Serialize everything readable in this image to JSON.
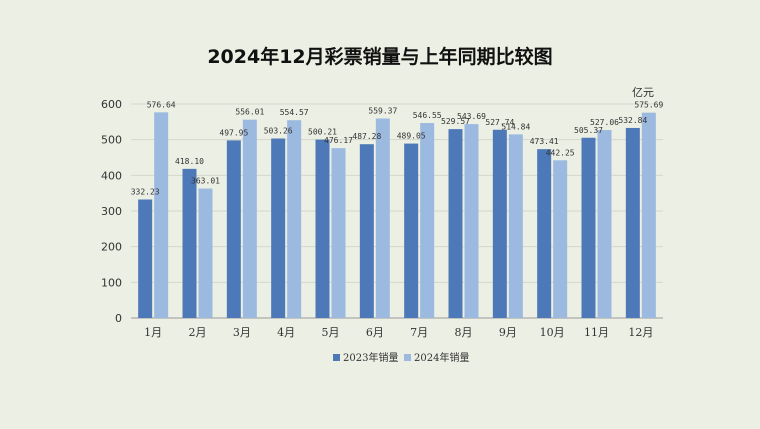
{
  "title": "2024年12月彩票销量与上年同期比较图",
  "colors": {
    "s2023": "#4e79b8",
    "s2024": "#9cb9e0",
    "grid": "#d3d7cc",
    "axis": "#9a9a9a"
  },
  "chart_data": {
    "type": "bar",
    "title": "2024年12月彩票销量与上年同期比较图",
    "unit": "亿元",
    "categories": [
      "1月",
      "2月",
      "3月",
      "4月",
      "5月",
      "6月",
      "7月",
      "8月",
      "9月",
      "10月",
      "11月",
      "12月"
    ],
    "ylim": [
      0,
      600
    ],
    "yticks": [
      0,
      100,
      200,
      300,
      400,
      500,
      600
    ],
    "grid": true,
    "legend": "bottom",
    "series": [
      {
        "name": "2023年销量",
        "values": [
          332.23,
          418.1,
          497.95,
          503.26,
          500.21,
          487.28,
          489.05,
          529.57,
          527.74,
          473.41,
          505.37,
          532.84
        ],
        "labels": [
          "332.23",
          "418.10",
          "497.95",
          "503.26",
          "500.21",
          "487.28",
          "489.05",
          "529.57",
          "527.74",
          "473.41",
          "505.37",
          "532.84"
        ]
      },
      {
        "name": "2024年销量",
        "values": [
          576.64,
          363.01,
          556.01,
          554.57,
          476.17,
          559.37,
          546.55,
          543.69,
          514.84,
          442.25,
          527.06,
          575.69
        ],
        "labels": [
          "576.64",
          "363.01",
          "556.01",
          "554.57",
          "476.17",
          "559.37",
          "546.55",
          "543.69",
          "514.84",
          "442.25",
          "527.06",
          "575.69"
        ]
      }
    ]
  }
}
